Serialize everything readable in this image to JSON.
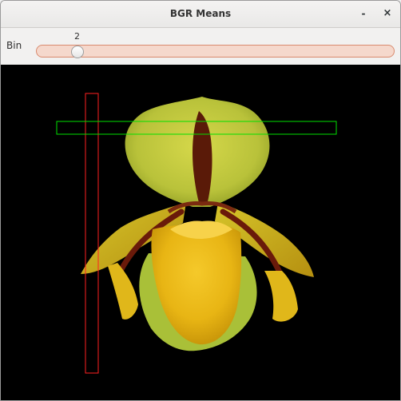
{
  "window": {
    "title": "BGR Means",
    "minimize_label": "-",
    "close_label": "×"
  },
  "controls": {
    "bin_label": "Bin",
    "bin_value": "2",
    "bin_fraction": 0.13
  },
  "image": {
    "subject": "yellow slipper orchid",
    "background": "#000000"
  },
  "overlays": {
    "vertical_roi_color": "#ff2020",
    "horizontal_roi_color": "#00e000"
  }
}
